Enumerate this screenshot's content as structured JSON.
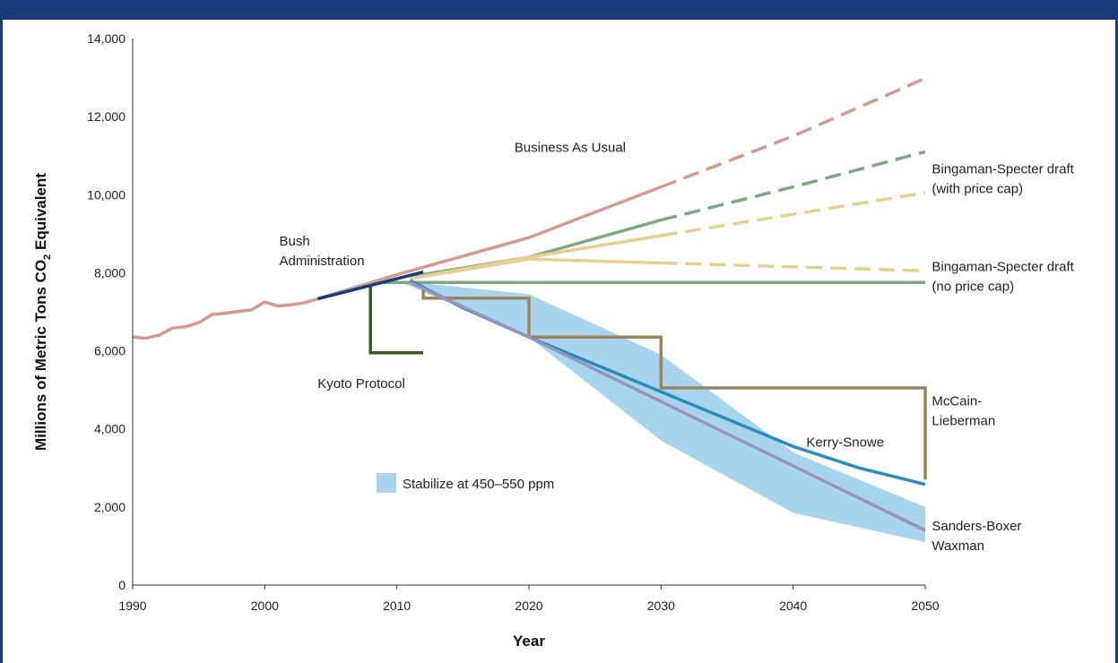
{
  "chart_data": {
    "type": "line",
    "xlabel": "Year",
    "ylabel": {
      "pre": "Millions of Metric Tons CO",
      "sub": "2",
      "post": " Equivalent"
    },
    "xlim": [
      1990,
      2050
    ],
    "ylim": [
      0,
      14000
    ],
    "xticks": [
      "1990",
      "2000",
      "2010",
      "2020",
      "2030",
      "2040",
      "2050"
    ],
    "yticks": [
      "0",
      "2,000",
      "4,000",
      "6,000",
      "8,000",
      "10,000",
      "12,000",
      "14,000"
    ],
    "legend": {
      "label": "Stabilize at 450–550 ppm",
      "color": "#a9d4ee"
    },
    "band": {
      "color": "#a9d4ee",
      "upper": [
        [
          2010,
          7800
        ],
        [
          2020,
          7450
        ],
        [
          2030,
          5900
        ],
        [
          2040,
          3400
        ],
        [
          2050,
          2000
        ]
      ],
      "lower": [
        [
          2010,
          7800
        ],
        [
          2020,
          6350
        ],
        [
          2030,
          3700
        ],
        [
          2040,
          1850
        ],
        [
          2050,
          1100
        ]
      ]
    },
    "series": [
      {
        "key": "history",
        "color": "#d49a92",
        "width": 3.5,
        "dash": "",
        "points": [
          [
            1990,
            6350
          ],
          [
            1991,
            6320
          ],
          [
            1992,
            6400
          ],
          [
            1993,
            6580
          ],
          [
            1994,
            6620
          ],
          [
            1995,
            6720
          ],
          [
            1996,
            6930
          ],
          [
            1997,
            6960
          ],
          [
            1998,
            7010
          ],
          [
            1999,
            7050
          ],
          [
            2000,
            7250
          ],
          [
            2001,
            7150
          ],
          [
            2002,
            7180
          ],
          [
            2003,
            7230
          ],
          [
            2004,
            7330
          ]
        ]
      },
      {
        "key": "bau",
        "color": "#d49a92",
        "width": 3.5,
        "dash": "",
        "points": [
          [
            2004,
            7330
          ],
          [
            2010,
            7950
          ],
          [
            2020,
            8900
          ],
          [
            2030,
            10200
          ]
        ]
      },
      {
        "key": "bau-proj",
        "color": "#d49a92",
        "width": 3.5,
        "dash": "18,9",
        "points": [
          [
            2030,
            10200
          ],
          [
            2040,
            11500
          ],
          [
            2050,
            12980
          ]
        ]
      },
      {
        "key": "bs-cap",
        "color": "#7da882",
        "width": 3.5,
        "dash": "",
        "points": [
          [
            2011,
            7900
          ],
          [
            2020,
            8400
          ],
          [
            2030,
            9350
          ]
        ]
      },
      {
        "key": "bs-cap-proj",
        "color": "#7da882",
        "width": 3.5,
        "dash": "18,9",
        "points": [
          [
            2030,
            9350
          ],
          [
            2040,
            10200
          ],
          [
            2050,
            11100
          ]
        ]
      },
      {
        "key": "bs-nocap-upper",
        "color": "#e6cf8f",
        "width": 3.5,
        "dash": "",
        "points": [
          [
            2011,
            7850
          ],
          [
            2020,
            8400
          ],
          [
            2030,
            8950
          ]
        ]
      },
      {
        "key": "bs-nocap-upper-proj",
        "color": "#e6cf8f",
        "width": 3.5,
        "dash": "18,9",
        "points": [
          [
            2030,
            8950
          ],
          [
            2040,
            9500
          ],
          [
            2050,
            10050
          ]
        ]
      },
      {
        "key": "bs-nocap-lower",
        "color": "#e6cf8f",
        "width": 3.5,
        "dash": "",
        "points": [
          [
            2011,
            7850
          ],
          [
            2020,
            8350
          ],
          [
            2030,
            8250
          ]
        ]
      },
      {
        "key": "bs-nocap-lower-proj",
        "color": "#e6cf8f",
        "width": 3.5,
        "dash": "18,9",
        "points": [
          [
            2030,
            8250
          ],
          [
            2040,
            8150
          ],
          [
            2050,
            8050
          ]
        ]
      },
      {
        "key": "flat",
        "color": "#7da882",
        "width": 3.5,
        "dash": "",
        "points": [
          [
            2009,
            7750
          ],
          [
            2050,
            7750
          ]
        ]
      },
      {
        "key": "bush",
        "color": "#173a7a",
        "width": 3.5,
        "dash": "",
        "points": [
          [
            2004,
            7330
          ],
          [
            2012,
            8020
          ]
        ]
      },
      {
        "key": "kyoto",
        "color": "#3d5a25",
        "width": 3.5,
        "dash": "",
        "points": [
          [
            2008,
            7650
          ],
          [
            2008,
            5950
          ],
          [
            2012,
            5950
          ]
        ]
      },
      {
        "key": "mccain",
        "color": "#9b845c",
        "width": 3.5,
        "dash": "",
        "points": [
          [
            2012,
            7650
          ],
          [
            2012,
            7350
          ],
          [
            2020,
            7350
          ],
          [
            2020,
            6350
          ],
          [
            2030,
            6350
          ],
          [
            2030,
            5050
          ],
          [
            2050,
            5050
          ],
          [
            2050,
            2700
          ]
        ]
      },
      {
        "key": "kerry",
        "color": "#2a8bbd",
        "width": 3.5,
        "dash": "",
        "points": [
          [
            2011,
            7800
          ],
          [
            2015,
            7100
          ],
          [
            2020,
            6350
          ],
          [
            2025,
            5650
          ],
          [
            2030,
            4950
          ],
          [
            2035,
            4250
          ],
          [
            2040,
            3550
          ],
          [
            2045,
            3000
          ],
          [
            2050,
            2580
          ]
        ]
      },
      {
        "key": "sanders",
        "color": "#9893bf",
        "width": 3.5,
        "dash": "",
        "points": [
          [
            2011,
            7750
          ],
          [
            2020,
            6350
          ],
          [
            2030,
            4700
          ],
          [
            2040,
            3050
          ],
          [
            2050,
            1400
          ]
        ]
      }
    ],
    "annotations": [
      {
        "lines": [
          "Business As Usual"
        ],
        "x": 2018.9,
        "y": 11100,
        "anchor": "start"
      },
      {
        "lines": [
          "Bingaman-Specter draft",
          "(with price cap)"
        ],
        "x": 2050.5,
        "y": 10550,
        "anchor": "start"
      },
      {
        "lines": [
          "Bush",
          "Administration"
        ],
        "x": 2001.1,
        "y": 8700,
        "anchor": "start"
      },
      {
        "lines": [
          "Bingaman-Specter draft",
          "(no price cap)"
        ],
        "x": 2050.5,
        "y": 8050,
        "anchor": "start"
      },
      {
        "lines": [
          "Kyoto Protocol"
        ],
        "x": 2004,
        "y": 5050,
        "anchor": "start"
      },
      {
        "lines": [
          "McCain-",
          "Lieberman"
        ],
        "x": 2050.5,
        "y": 4600,
        "anchor": "start"
      },
      {
        "lines": [
          "Kerry-Snowe"
        ],
        "x": 2041,
        "y": 3550,
        "anchor": "start"
      },
      {
        "lines": [
          "Sanders-Boxer",
          "Waxman"
        ],
        "x": 2050.5,
        "y": 1400,
        "anchor": "start"
      }
    ]
  }
}
